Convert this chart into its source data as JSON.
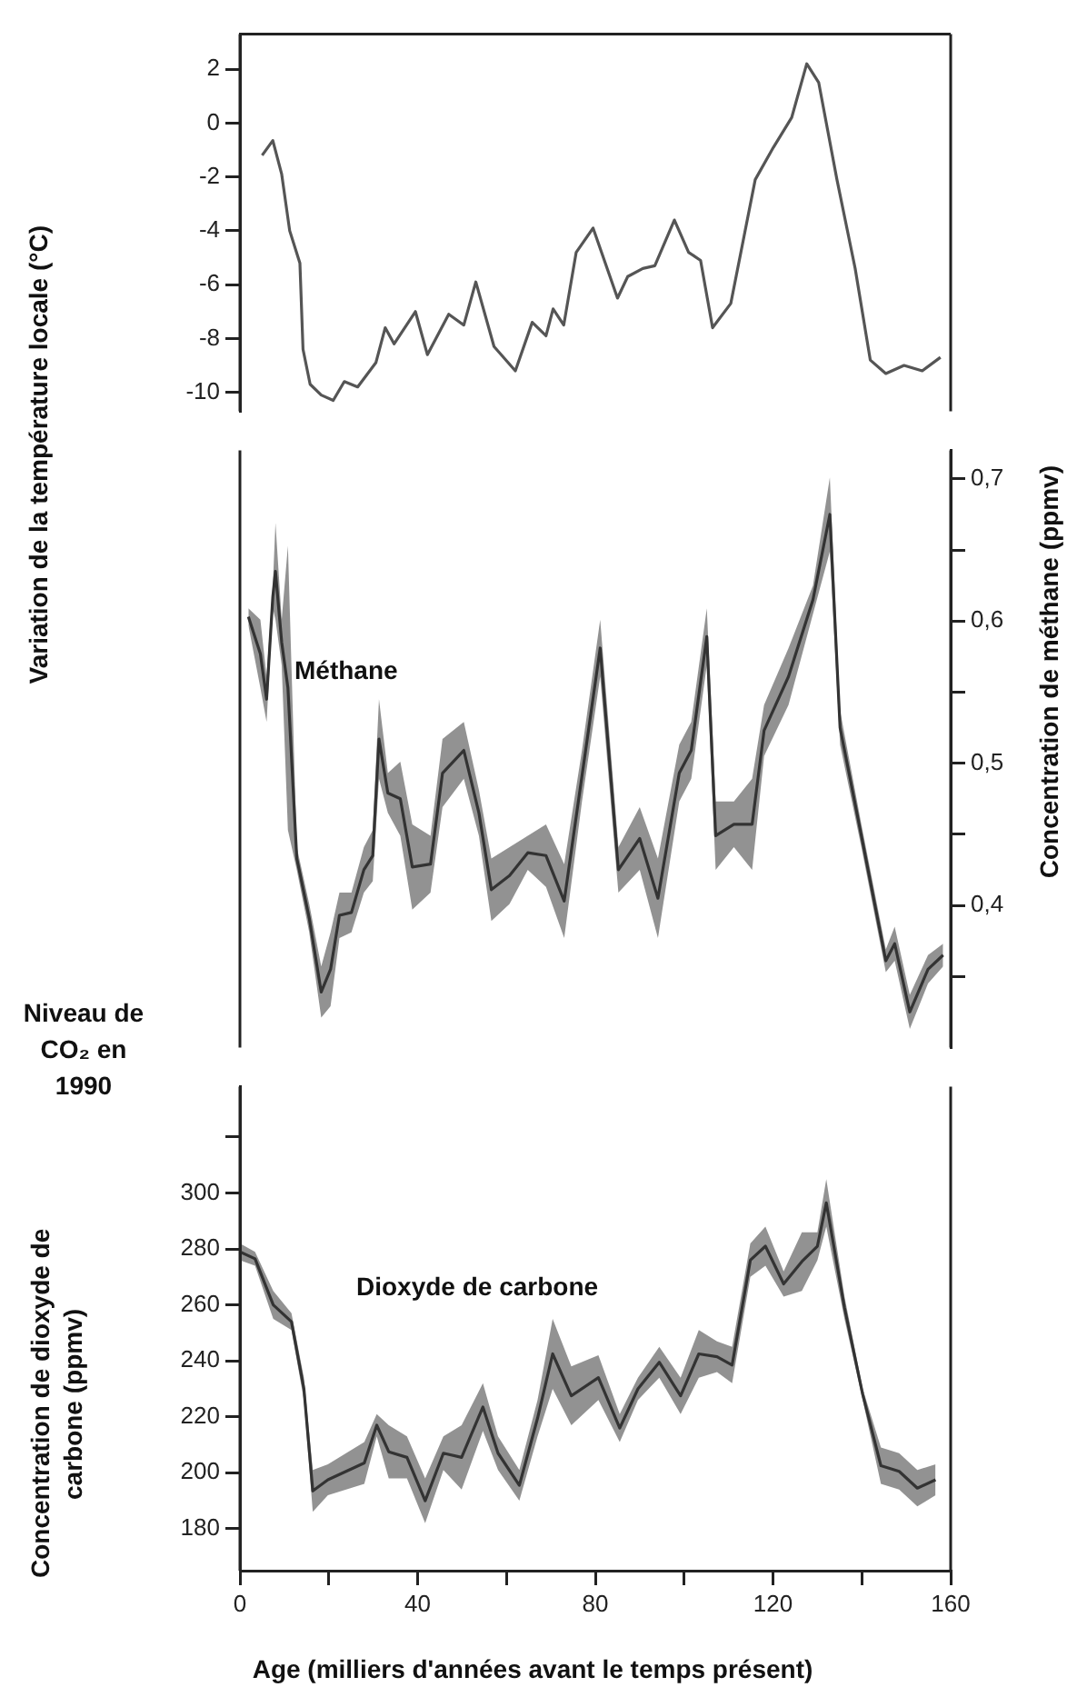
{
  "chart_data": [
    {
      "type": "line",
      "ylabel": "Variation de la température locale (°C)",
      "tick_labels": "y",
      "xlim": [
        0,
        160
      ],
      "ylim": [
        -10.7,
        3.3
      ],
      "yticks": [
        -10,
        -8,
        -6,
        -4,
        -2,
        0,
        2
      ],
      "series": [
        {
          "color": "#555555",
          "x": [
            5,
            7.4,
            9.4,
            11.2,
            13.5,
            14.2,
            15.8,
            18.3,
            21,
            23.5,
            26.5,
            30.6,
            32.7,
            34.7,
            39.5,
            42.2,
            47,
            50.4,
            53.1,
            57.2,
            62,
            65.8,
            68.9,
            70.5,
            72.9,
            75.7,
            79.5,
            85,
            87.3,
            90.7,
            93.4,
            97.8,
            101,
            103.7,
            106.4,
            110.5,
            116,
            120.1,
            124.2,
            127.6,
            130.3,
            134.4,
            138.5,
            141.9,
            145.4,
            149.5,
            153.6,
            157.7
          ],
          "values": [
            -1.2,
            -0.65,
            -1.9,
            -4,
            -5.2,
            -8.4,
            -9.7,
            -10.1,
            -10.3,
            -9.6,
            -9.8,
            -8.9,
            -7.6,
            -8.2,
            -7,
            -8.6,
            -7.1,
            -7.5,
            -5.9,
            -8.3,
            -9.2,
            -7.4,
            -7.9,
            -6.9,
            -7.5,
            -4.8,
            -3.9,
            -6.5,
            -5.7,
            -5.4,
            -5.3,
            -3.6,
            -4.8,
            -5.1,
            -7.6,
            -6.7,
            -2.1,
            -0.9,
            0.2,
            2.2,
            1.5,
            -2.1,
            -5.4,
            -8.8,
            -9.3,
            -9,
            -9.2,
            -8.7
          ]
        }
      ]
    },
    {
      "type": "line",
      "y2label": "Concentration de méthane (ppmv)",
      "tick_labels": "y",
      "xlim": [
        0,
        160
      ],
      "y2lim": [
        0.3,
        0.72
      ],
      "y2ticks": [
        {
          "value": 0.35,
          "label": null
        },
        {
          "value": 0.4,
          "label": "0,4"
        },
        {
          "value": 0.45,
          "label": null
        },
        {
          "value": 0.5,
          "label": "0,5"
        },
        {
          "value": 0.55,
          "label": null
        },
        {
          "value": 0.6,
          "label": "0,6"
        },
        {
          "value": 0.65,
          "label": null
        },
        {
          "value": 0.7,
          "label": "0,7"
        }
      ],
      "series": [
        {
          "name": "Méthane",
          "axis": "y2",
          "color": "#333333",
          "x": [
            1.9,
            4.6,
            6,
            7.4,
            8,
            9.4,
            10.8,
            12.8,
            15.6,
            18.3,
            20.4,
            22.4,
            25.1,
            27.9,
            29.9,
            31.3,
            33.3,
            36.1,
            38.8,
            42.9,
            45.6,
            50.4,
            53.8,
            56.6,
            60.7,
            64.8,
            68.9,
            73,
            77,
            81.1,
            85.2,
            90,
            94.1,
            98.9,
            101.6,
            105.1,
            107.1,
            111.2,
            115.3,
            118,
            123.5,
            129,
            132.8,
            135.1,
            139.9,
            145.4,
            147.4,
            150.8,
            154.9,
            158.3
          ],
          "values": [
            0.603,
            0.577,
            0.545,
            0.617,
            0.635,
            0.585,
            0.553,
            0.433,
            0.391,
            0.339,
            0.355,
            0.393,
            0.395,
            0.425,
            0.435,
            0.517,
            0.479,
            0.475,
            0.427,
            0.429,
            0.493,
            0.509,
            0.465,
            0.411,
            0.421,
            0.437,
            0.435,
            0.403,
            0.491,
            0.581,
            0.425,
            0.447,
            0.405,
            0.493,
            0.509,
            0.589,
            0.449,
            0.457,
            0.457,
            0.523,
            0.561,
            0.615,
            0.675,
            0.525,
            0.449,
            0.361,
            0.373,
            0.325,
            0.355,
            0.365
          ],
          "lower": [
            0.597,
            0.553,
            0.529,
            0.609,
            0.601,
            0.569,
            0.453,
            0.425,
            0.381,
            0.321,
            0.329,
            0.377,
            0.381,
            0.409,
            0.417,
            0.489,
            0.465,
            0.449,
            0.397,
            0.409,
            0.469,
            0.489,
            0.449,
            0.389,
            0.401,
            0.425,
            0.413,
            0.377,
            0.473,
            0.561,
            0.409,
            0.425,
            0.377,
            0.473,
            0.489,
            0.569,
            0.425,
            0.441,
            0.425,
            0.505,
            0.541,
            0.605,
            0.649,
            0.513,
            0.441,
            0.353,
            0.361,
            0.313,
            0.345,
            0.357
          ],
          "upper": [
            0.609,
            0.601,
            0.561,
            0.625,
            0.669,
            0.601,
            0.653,
            0.441,
            0.401,
            0.357,
            0.381,
            0.409,
            0.409,
            0.441,
            0.453,
            0.545,
            0.493,
            0.501,
            0.457,
            0.449,
            0.517,
            0.529,
            0.481,
            0.433,
            0.441,
            0.449,
            0.457,
            0.429,
            0.509,
            0.601,
            0.441,
            0.469,
            0.433,
            0.513,
            0.529,
            0.609,
            0.473,
            0.473,
            0.489,
            0.541,
            0.581,
            0.625,
            0.701,
            0.537,
            0.457,
            0.369,
            0.385,
            0.337,
            0.365,
            0.373
          ]
        }
      ]
    },
    {
      "type": "line",
      "xlabel": "Age (milliers d'années avant le temps présent)",
      "ylabel": "Concentration de dioxyde de carbone (ppmv)",
      "xlim": [
        0,
        160
      ],
      "xticks": [
        0,
        {
          "value": 20,
          "label": null
        },
        40,
        {
          "value": 60,
          "label": null
        },
        80,
        {
          "value": 100,
          "label": null
        },
        120,
        {
          "value": 140,
          "label": null
        },
        160
      ],
      "ylim": [
        165,
        338
      ],
      "yticks": [
        180,
        200,
        220,
        240,
        260,
        280,
        300,
        {
          "value": 320,
          "label": null
        }
      ],
      "annotations": [
        "Niveau de CO₂ en 1990"
      ],
      "series": [
        {
          "name": "Dioxyde de carbone",
          "color": "#333333",
          "x": [
            0,
            3.4,
            7.5,
            11.6,
            14.4,
            16.4,
            19.8,
            23.9,
            28,
            30.8,
            33.5,
            37.6,
            41.7,
            45.8,
            49.9,
            54.7,
            58.1,
            62.9,
            67,
            70.4,
            74.6,
            80.7,
            85.5,
            89.6,
            94.4,
            99.2,
            103.3,
            107.4,
            110.8,
            114.9,
            118.3,
            122.4,
            126.5,
            130,
            132,
            136.1,
            140.2,
            144.3,
            148.4,
            152.5,
            156.6
          ],
          "values": [
            279,
            276.5,
            260,
            254,
            230,
            193.5,
            197.5,
            200.5,
            203.5,
            217,
            207.5,
            205.5,
            190,
            207,
            205.5,
            223.5,
            207,
            195.5,
            219.5,
            242.5,
            227.5,
            234,
            216,
            230,
            239.5,
            227.5,
            242.5,
            241.5,
            238.5,
            276,
            281,
            267.5,
            275.5,
            281,
            296.5,
            259,
            228,
            202.5,
            200.5,
            194.5,
            197.5
          ],
          "lower": [
            276,
            274,
            255,
            251,
            226,
            186,
            192,
            194,
            196,
            213,
            198,
            198,
            182,
            201,
            194,
            215,
            201,
            190,
            213,
            230,
            217,
            226,
            211,
            226,
            234,
            221,
            234,
            236,
            232,
            270,
            274,
            263,
            265,
            276,
            288,
            255,
            226,
            196,
            194,
            188,
            192
          ],
          "upper": [
            282,
            279,
            265,
            257,
            234,
            201,
            203,
            207,
            211,
            221,
            217,
            213,
            198,
            213,
            217,
            232,
            213,
            201,
            226,
            255,
            238,
            242,
            221,
            234,
            245,
            234,
            251,
            247,
            245,
            282,
            288,
            272,
            286,
            286,
            305,
            263,
            230,
            209,
            207,
            201,
            203
          ]
        }
      ]
    }
  ]
}
